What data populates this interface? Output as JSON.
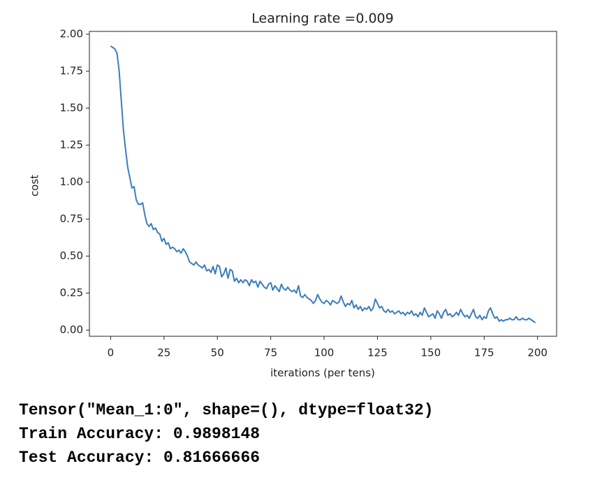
{
  "chart_data": {
    "type": "line",
    "title": "Learning rate =0.009",
    "xlabel": "iterations (per tens)",
    "ylabel": "cost",
    "color": "#3b7dbd",
    "x": [
      0,
      1,
      2,
      3,
      4,
      5,
      6,
      7,
      8,
      9,
      10,
      11,
      12,
      13,
      14,
      15,
      16,
      17,
      18,
      19,
      20,
      21,
      22,
      23,
      24,
      25,
      26,
      27,
      28,
      29,
      30,
      31,
      32,
      33,
      34,
      35,
      36,
      37,
      38,
      39,
      40,
      41,
      42,
      43,
      44,
      45,
      46,
      47,
      48,
      49,
      50,
      51,
      52,
      53,
      54,
      55,
      56,
      57,
      58,
      59,
      60,
      61,
      62,
      63,
      64,
      65,
      66,
      67,
      68,
      69,
      70,
      71,
      72,
      73,
      74,
      75,
      76,
      77,
      78,
      79,
      80,
      81,
      82,
      83,
      84,
      85,
      86,
      87,
      88,
      89,
      90,
      91,
      92,
      93,
      94,
      95,
      96,
      97,
      98,
      99,
      100,
      101,
      102,
      103,
      104,
      105,
      106,
      107,
      108,
      109,
      110,
      111,
      112,
      113,
      114,
      115,
      116,
      117,
      118,
      119,
      120,
      121,
      122,
      123,
      124,
      125,
      126,
      127,
      128,
      129,
      130,
      131,
      132,
      133,
      134,
      135,
      136,
      137,
      138,
      139,
      140,
      141,
      142,
      143,
      144,
      145,
      146,
      147,
      148,
      149,
      150,
      151,
      152,
      153,
      154,
      155,
      156,
      157,
      158,
      159,
      160,
      161,
      162,
      163,
      164,
      165,
      166,
      167,
      168,
      169,
      170,
      171,
      172,
      173,
      174,
      175,
      176,
      177,
      178,
      179,
      180,
      181,
      182,
      183,
      184,
      185,
      186,
      187,
      188,
      189,
      190,
      191,
      192,
      193,
      194,
      195,
      196,
      197,
      198,
      199
    ],
    "values": [
      1.92,
      1.91,
      1.9,
      1.87,
      1.75,
      1.55,
      1.35,
      1.22,
      1.1,
      1.03,
      0.96,
      0.97,
      0.88,
      0.85,
      0.85,
      0.86,
      0.78,
      0.72,
      0.7,
      0.72,
      0.68,
      0.69,
      0.66,
      0.65,
      0.6,
      0.62,
      0.58,
      0.59,
      0.55,
      0.56,
      0.55,
      0.53,
      0.54,
      0.52,
      0.55,
      0.53,
      0.5,
      0.46,
      0.45,
      0.44,
      0.46,
      0.44,
      0.43,
      0.42,
      0.44,
      0.4,
      0.41,
      0.39,
      0.43,
      0.38,
      0.44,
      0.43,
      0.36,
      0.38,
      0.42,
      0.35,
      0.41,
      0.4,
      0.33,
      0.35,
      0.32,
      0.34,
      0.32,
      0.34,
      0.33,
      0.3,
      0.34,
      0.32,
      0.33,
      0.29,
      0.33,
      0.31,
      0.29,
      0.28,
      0.31,
      0.32,
      0.27,
      0.3,
      0.28,
      0.26,
      0.31,
      0.28,
      0.27,
      0.29,
      0.27,
      0.26,
      0.27,
      0.25,
      0.3,
      0.23,
      0.22,
      0.24,
      0.22,
      0.21,
      0.2,
      0.18,
      0.2,
      0.24,
      0.21,
      0.19,
      0.18,
      0.2,
      0.19,
      0.17,
      0.2,
      0.19,
      0.18,
      0.19,
      0.23,
      0.19,
      0.16,
      0.18,
      0.17,
      0.2,
      0.15,
      0.17,
      0.14,
      0.16,
      0.13,
      0.15,
      0.14,
      0.16,
      0.13,
      0.15,
      0.21,
      0.18,
      0.15,
      0.16,
      0.13,
      0.12,
      0.14,
      0.12,
      0.13,
      0.11,
      0.12,
      0.13,
      0.11,
      0.12,
      0.1,
      0.12,
      0.11,
      0.13,
      0.1,
      0.11,
      0.09,
      0.12,
      0.1,
      0.15,
      0.12,
      0.09,
      0.1,
      0.11,
      0.08,
      0.13,
      0.11,
      0.08,
      0.12,
      0.14,
      0.1,
      0.11,
      0.09,
      0.1,
      0.12,
      0.1,
      0.14,
      0.11,
      0.09,
      0.1,
      0.08,
      0.11,
      0.14,
      0.09,
      0.08,
      0.1,
      0.07,
      0.09,
      0.08,
      0.13,
      0.15,
      0.11,
      0.08,
      0.09,
      0.06,
      0.07,
      0.06,
      0.07,
      0.07,
      0.08,
      0.07,
      0.07,
      0.09,
      0.07,
      0.07,
      0.08,
      0.07,
      0.07,
      0.08,
      0.07,
      0.06,
      0.05
    ],
    "xlim": [
      -9.95,
      208.95
    ],
    "xticks": [
      0,
      25,
      50,
      75,
      100,
      125,
      150,
      175,
      200
    ],
    "ylim": [
      -0.042,
      2.019
    ],
    "yticks": [
      {
        "value": 0,
        "label": "0.00"
      },
      {
        "value": 0.25,
        "label": "0.25"
      },
      {
        "value": 0.5,
        "label": "0.50"
      },
      {
        "value": 0.75,
        "label": "0.75"
      },
      {
        "value": 1,
        "label": "1.00"
      },
      {
        "value": 1.25,
        "label": "1.25"
      },
      {
        "value": 1.5,
        "label": "1.50"
      },
      {
        "value": 1.75,
        "label": "1.75"
      },
      {
        "value": 2,
        "label": "2.00"
      }
    ],
    "grid": false
  },
  "console_output": [
    "Tensor(\"Mean_1:0\", shape=(), dtype=float32)",
    "Train Accuracy: 0.9898148",
    "Test Accuracy: 0.81666666"
  ]
}
